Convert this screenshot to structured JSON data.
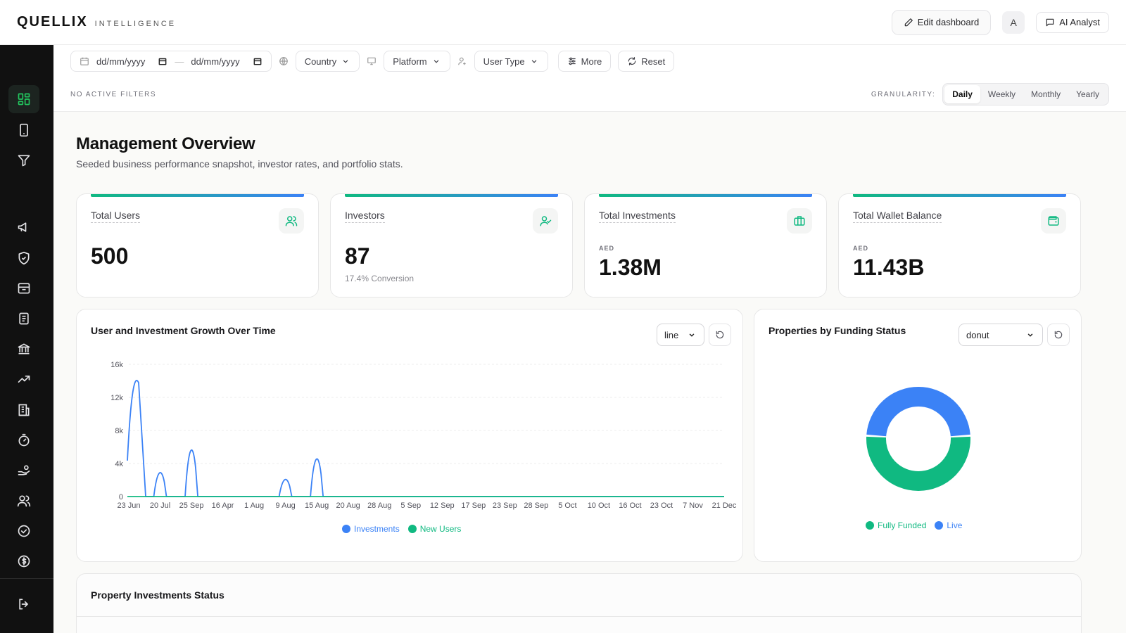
{
  "header": {
    "brand_name": "QUELLIX",
    "brand_sub": "INTELLIGENCE",
    "edit_label": "Edit dashboard",
    "avatar_letter": "A",
    "ai_label": "AI Analyst"
  },
  "sidebar": {
    "items": [
      {
        "icon": "dashboard-grid-icon",
        "active": true
      },
      {
        "icon": "tablet-icon"
      },
      {
        "icon": "filter-funnel-icon"
      },
      {
        "icon": "megaphone-icon"
      },
      {
        "icon": "shield-check-icon"
      },
      {
        "icon": "archive-box-icon"
      },
      {
        "icon": "document-list-icon"
      },
      {
        "icon": "bank-icon"
      },
      {
        "icon": "trending-up-icon"
      },
      {
        "icon": "building-icon"
      },
      {
        "icon": "timer-icon"
      },
      {
        "icon": "hand-coins-icon"
      },
      {
        "icon": "users-icon"
      },
      {
        "icon": "check-circle-icon"
      },
      {
        "icon": "dollar-circle-icon"
      },
      {
        "icon": "logout-icon"
      }
    ]
  },
  "filters": {
    "date_from_placeholder": "dd/mm/yyyy",
    "date_to_placeholder": "dd/mm/yyyy",
    "country_label": "Country",
    "platform_label": "Platform",
    "user_type_label": "User Type",
    "more_label": "More",
    "reset_label": "Reset",
    "status_text": "NO ACTIVE FILTERS",
    "granularity_label": "GRANULARITY:",
    "granularity_options": [
      "Daily",
      "Weekly",
      "Monthly",
      "Yearly"
    ],
    "granularity_selected": "Daily"
  },
  "page": {
    "title": "Management Overview",
    "subtitle": "Seeded business performance snapshot, investor rates, and portfolio stats."
  },
  "kpis": [
    {
      "label": "Total Users",
      "value": "500",
      "icon": "users-icon"
    },
    {
      "label": "Investors",
      "value": "87",
      "sub": "17.4% Conversion",
      "icon": "user-check-icon"
    },
    {
      "label": "Total Investments",
      "unit": "AED",
      "value": "1.38M",
      "icon": "briefcase-icon"
    },
    {
      "label": "Total Wallet Balance",
      "unit": "AED",
      "value": "11.43B",
      "icon": "wallet-icon"
    }
  ],
  "growth_card": {
    "title": "User and Investment Growth Over Time",
    "chart_type_value": "line"
  },
  "funding_card": {
    "title": "Properties by Funding Status",
    "chart_type_value": "donut"
  },
  "status_card": {
    "title": "Property Investments Status"
  },
  "colors": {
    "accent_green": "#10b981",
    "accent_blue": "#3b82f6",
    "sidebar_bg": "#111111"
  },
  "chart_data": [
    {
      "type": "line",
      "categories": [
        "23 Jun",
        "20 Jul",
        "25 Sep",
        "16 Apr",
        "1 Aug",
        "9 Aug",
        "15 Aug",
        "20 Aug",
        "28 Aug",
        "5 Sep",
        "12 Sep",
        "17 Sep",
        "23 Sep",
        "28 Sep",
        "5 Oct",
        "10 Oct",
        "16 Oct",
        "23 Oct",
        "7 Nov",
        "21 Dec"
      ],
      "series": [
        {
          "name": "Investments",
          "color": "#3b82f6",
          "values": [
            14500,
            3500,
            6800,
            0,
            0,
            2500,
            5500,
            0,
            0,
            0,
            0,
            0,
            0,
            0,
            0,
            0,
            0,
            0,
            0,
            0
          ]
        },
        {
          "name": "New Users",
          "color": "#10b981",
          "values": [
            0,
            0,
            0,
            0,
            0,
            0,
            0,
            0,
            0,
            0,
            0,
            0,
            0,
            0,
            0,
            0,
            0,
            0,
            0,
            0
          ]
        }
      ],
      "yticks": [
        "0",
        "4k",
        "8k",
        "12k",
        "16k"
      ],
      "ylim": [
        0,
        16000
      ],
      "grid": true,
      "legend": "bottom-center"
    },
    {
      "type": "pie",
      "variant": "donut",
      "labels": [
        "Fully Funded",
        "Live"
      ],
      "values": [
        52,
        48
      ],
      "colors": [
        "#10b981",
        "#3b82f6"
      ],
      "legend": "bottom-center"
    }
  ]
}
